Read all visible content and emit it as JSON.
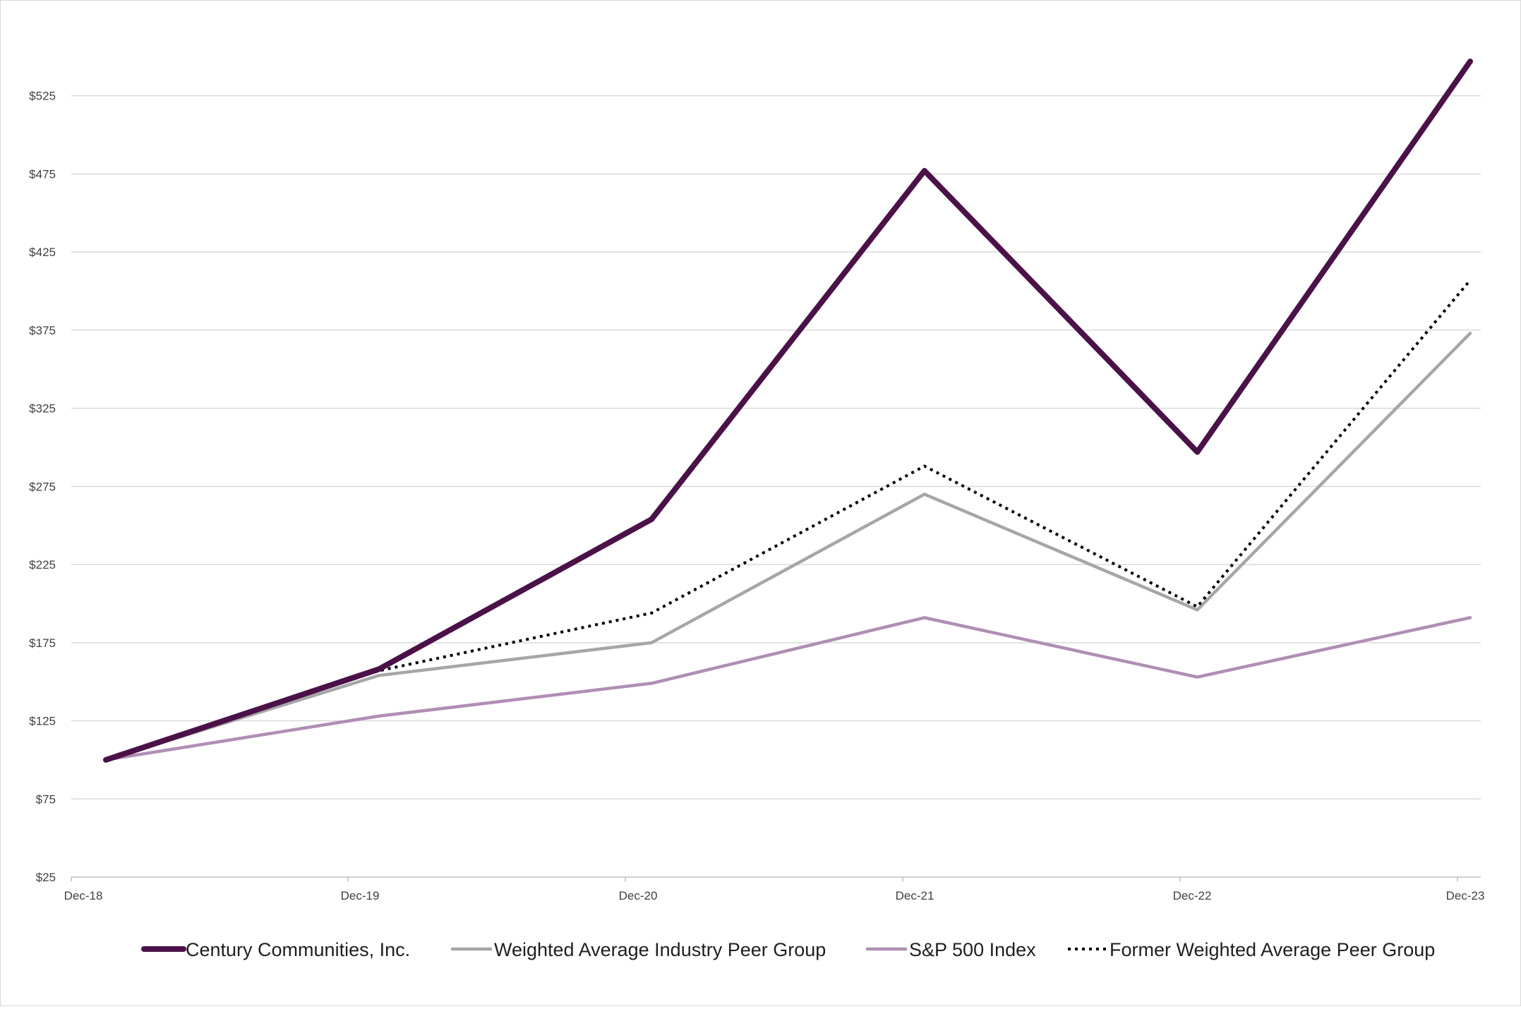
{
  "chart_data": {
    "type": "line",
    "title": "",
    "xlabel": "",
    "ylabel": "",
    "categories": [
      "Dec-18",
      "Dec-19",
      "Dec-20",
      "Dec-21",
      "Dec-22",
      "Dec-23"
    ],
    "ylim": [
      25,
      575
    ],
    "yticks": [
      25,
      75,
      125,
      175,
      225,
      275,
      325,
      375,
      425,
      475,
      525
    ],
    "ytick_labels": [
      "$25",
      "$75",
      "$125",
      "$175",
      "$225",
      "$275",
      "$325",
      "$375",
      "$425",
      "$475",
      "$525"
    ],
    "grid": "horizontal",
    "legend_position": "bottom",
    "series": [
      {
        "name": "Century Communities, Inc.",
        "values": [
          100,
          158,
          254,
          477,
          297,
          547
        ],
        "color": "#4a1248",
        "style": "solid-thick"
      },
      {
        "name": "Weighted Average Industry Peer Group",
        "values": [
          100,
          154,
          175,
          270,
          196,
          373
        ],
        "color": "#a6a6a6",
        "style": "solid"
      },
      {
        "name": "S&P 500 Index",
        "values": [
          100,
          128,
          149,
          191,
          153,
          191
        ],
        "color": "#b08eb4",
        "style": "solid"
      },
      {
        "name": "Former Weighted Average Peer Group",
        "values": [
          100,
          157,
          194,
          288,
          198,
          407
        ],
        "color": "#000000",
        "style": "dotted"
      }
    ]
  }
}
